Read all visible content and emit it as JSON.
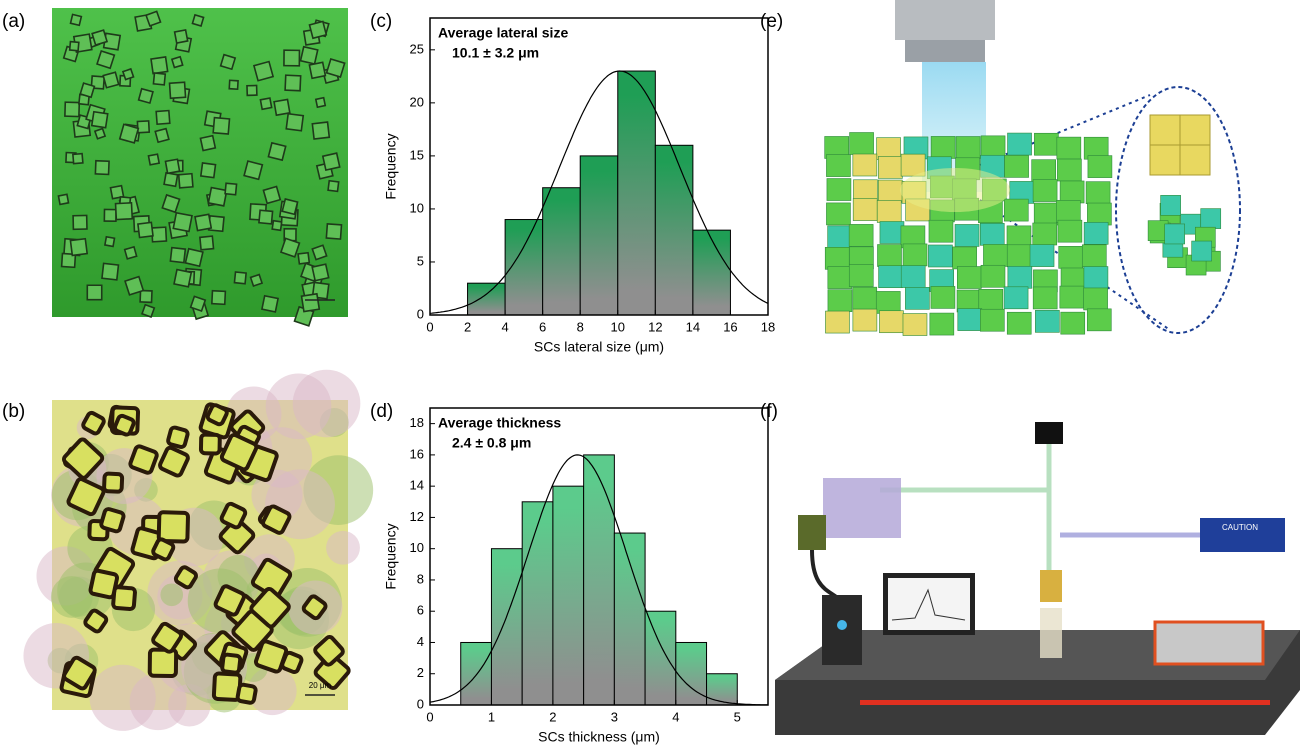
{
  "panel_labels": [
    "(a)",
    "(b)",
    "(c)",
    "(d)",
    "(e)",
    "(f)"
  ],
  "scale_bar": "20 μm",
  "laser_label": "CAUTION",
  "chart_data": [
    {
      "type": "histogram",
      "annotation": [
        "Average lateral size",
        "10.1 ± 3.2 μm"
      ],
      "xlabel": "SCs lateral size (μm)",
      "ylabel": "Frequency",
      "bins": [
        2,
        4,
        6,
        8,
        10,
        12,
        14,
        16
      ],
      "counts": [
        3,
        9,
        12,
        15,
        23,
        16,
        8
      ],
      "fit": {
        "mean": 10.1,
        "sd": 3.2,
        "peak": 23
      },
      "colors": [
        "#1f9e55",
        "#8f8f8f"
      ],
      "xlim": [
        0,
        18
      ],
      "xticks": [
        0,
        2,
        4,
        6,
        8,
        10,
        12,
        14,
        16,
        18
      ],
      "ylim": [
        0,
        28
      ],
      "yticks": [
        0,
        5,
        10,
        15,
        20,
        25
      ]
    },
    {
      "type": "histogram",
      "annotation": [
        "Average thickness",
        "2.4 ± 0.8 μm"
      ],
      "xlabel": "SCs thickness (μm)",
      "ylabel": "Frequency",
      "bins": [
        0.5,
        1,
        1.5,
        2,
        2.5,
        3,
        3.5,
        4,
        4.5,
        5
      ],
      "counts": [
        4,
        10,
        13,
        14,
        16,
        11,
        6,
        4,
        2
      ],
      "fit": {
        "mean": 2.4,
        "sd": 0.8,
        "peak": 16
      },
      "colors": [
        "#5ccb8c",
        "#8f8f8f"
      ],
      "xlim": [
        0,
        5.5
      ],
      "xticks": [
        0,
        1,
        2,
        3,
        4,
        5
      ],
      "ylim": [
        0,
        19
      ],
      "yticks": [
        0,
        2,
        4,
        6,
        8,
        10,
        12,
        14,
        16,
        18
      ]
    }
  ]
}
